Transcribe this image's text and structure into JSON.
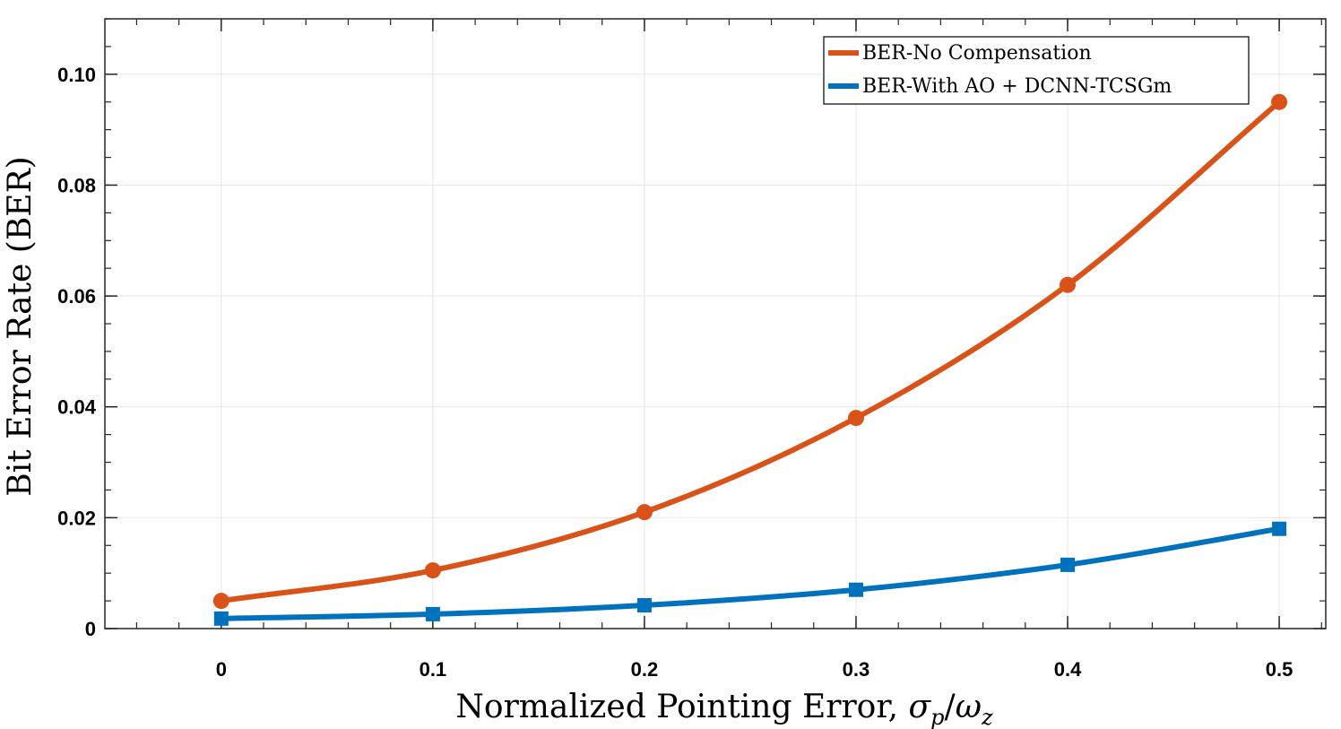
{
  "chart_data": {
    "type": "line",
    "xlabel": "Normalized Pointing Error, σp/ωz",
    "xlabel_main": "Normalized Pointing Error, ",
    "xlabel_sigma": "σ",
    "xlabel_p": "p",
    "xlabel_slash": "/",
    "xlabel_omega": "ω",
    "xlabel_z": "z",
    "ylabel": "Bit Error Rate (BER)",
    "xlim": [
      -0.055,
      0.522
    ],
    "ylim": [
      0,
      0.11
    ],
    "x_ticks": [
      0,
      0.1,
      0.2,
      0.3,
      0.4,
      0.5
    ],
    "x_tick_labels": [
      "0",
      "0.1",
      "0.2",
      "0.3",
      "0.4",
      "0.5"
    ],
    "y_ticks": [
      0,
      0.02,
      0.04,
      0.06,
      0.08,
      0.1
    ],
    "y_tick_labels": [
      "0",
      "0.02",
      "0.04",
      "0.06",
      "0.08",
      "0.10"
    ],
    "grid": true,
    "legend_position": "top-right",
    "x": [
      0,
      0.1,
      0.2,
      0.3,
      0.4,
      0.5
    ],
    "series": [
      {
        "name": "BER-No Compensation",
        "color": "#D95319",
        "marker": "circle",
        "values": [
          0.005,
          0.0105,
          0.021,
          0.038,
          0.062,
          0.095
        ]
      },
      {
        "name": "BER-With AO + DCNN-TCSGm",
        "color": "#0072BD",
        "marker": "square",
        "values": [
          0.0018,
          0.0026,
          0.0042,
          0.007,
          0.0115,
          0.018
        ]
      }
    ]
  }
}
